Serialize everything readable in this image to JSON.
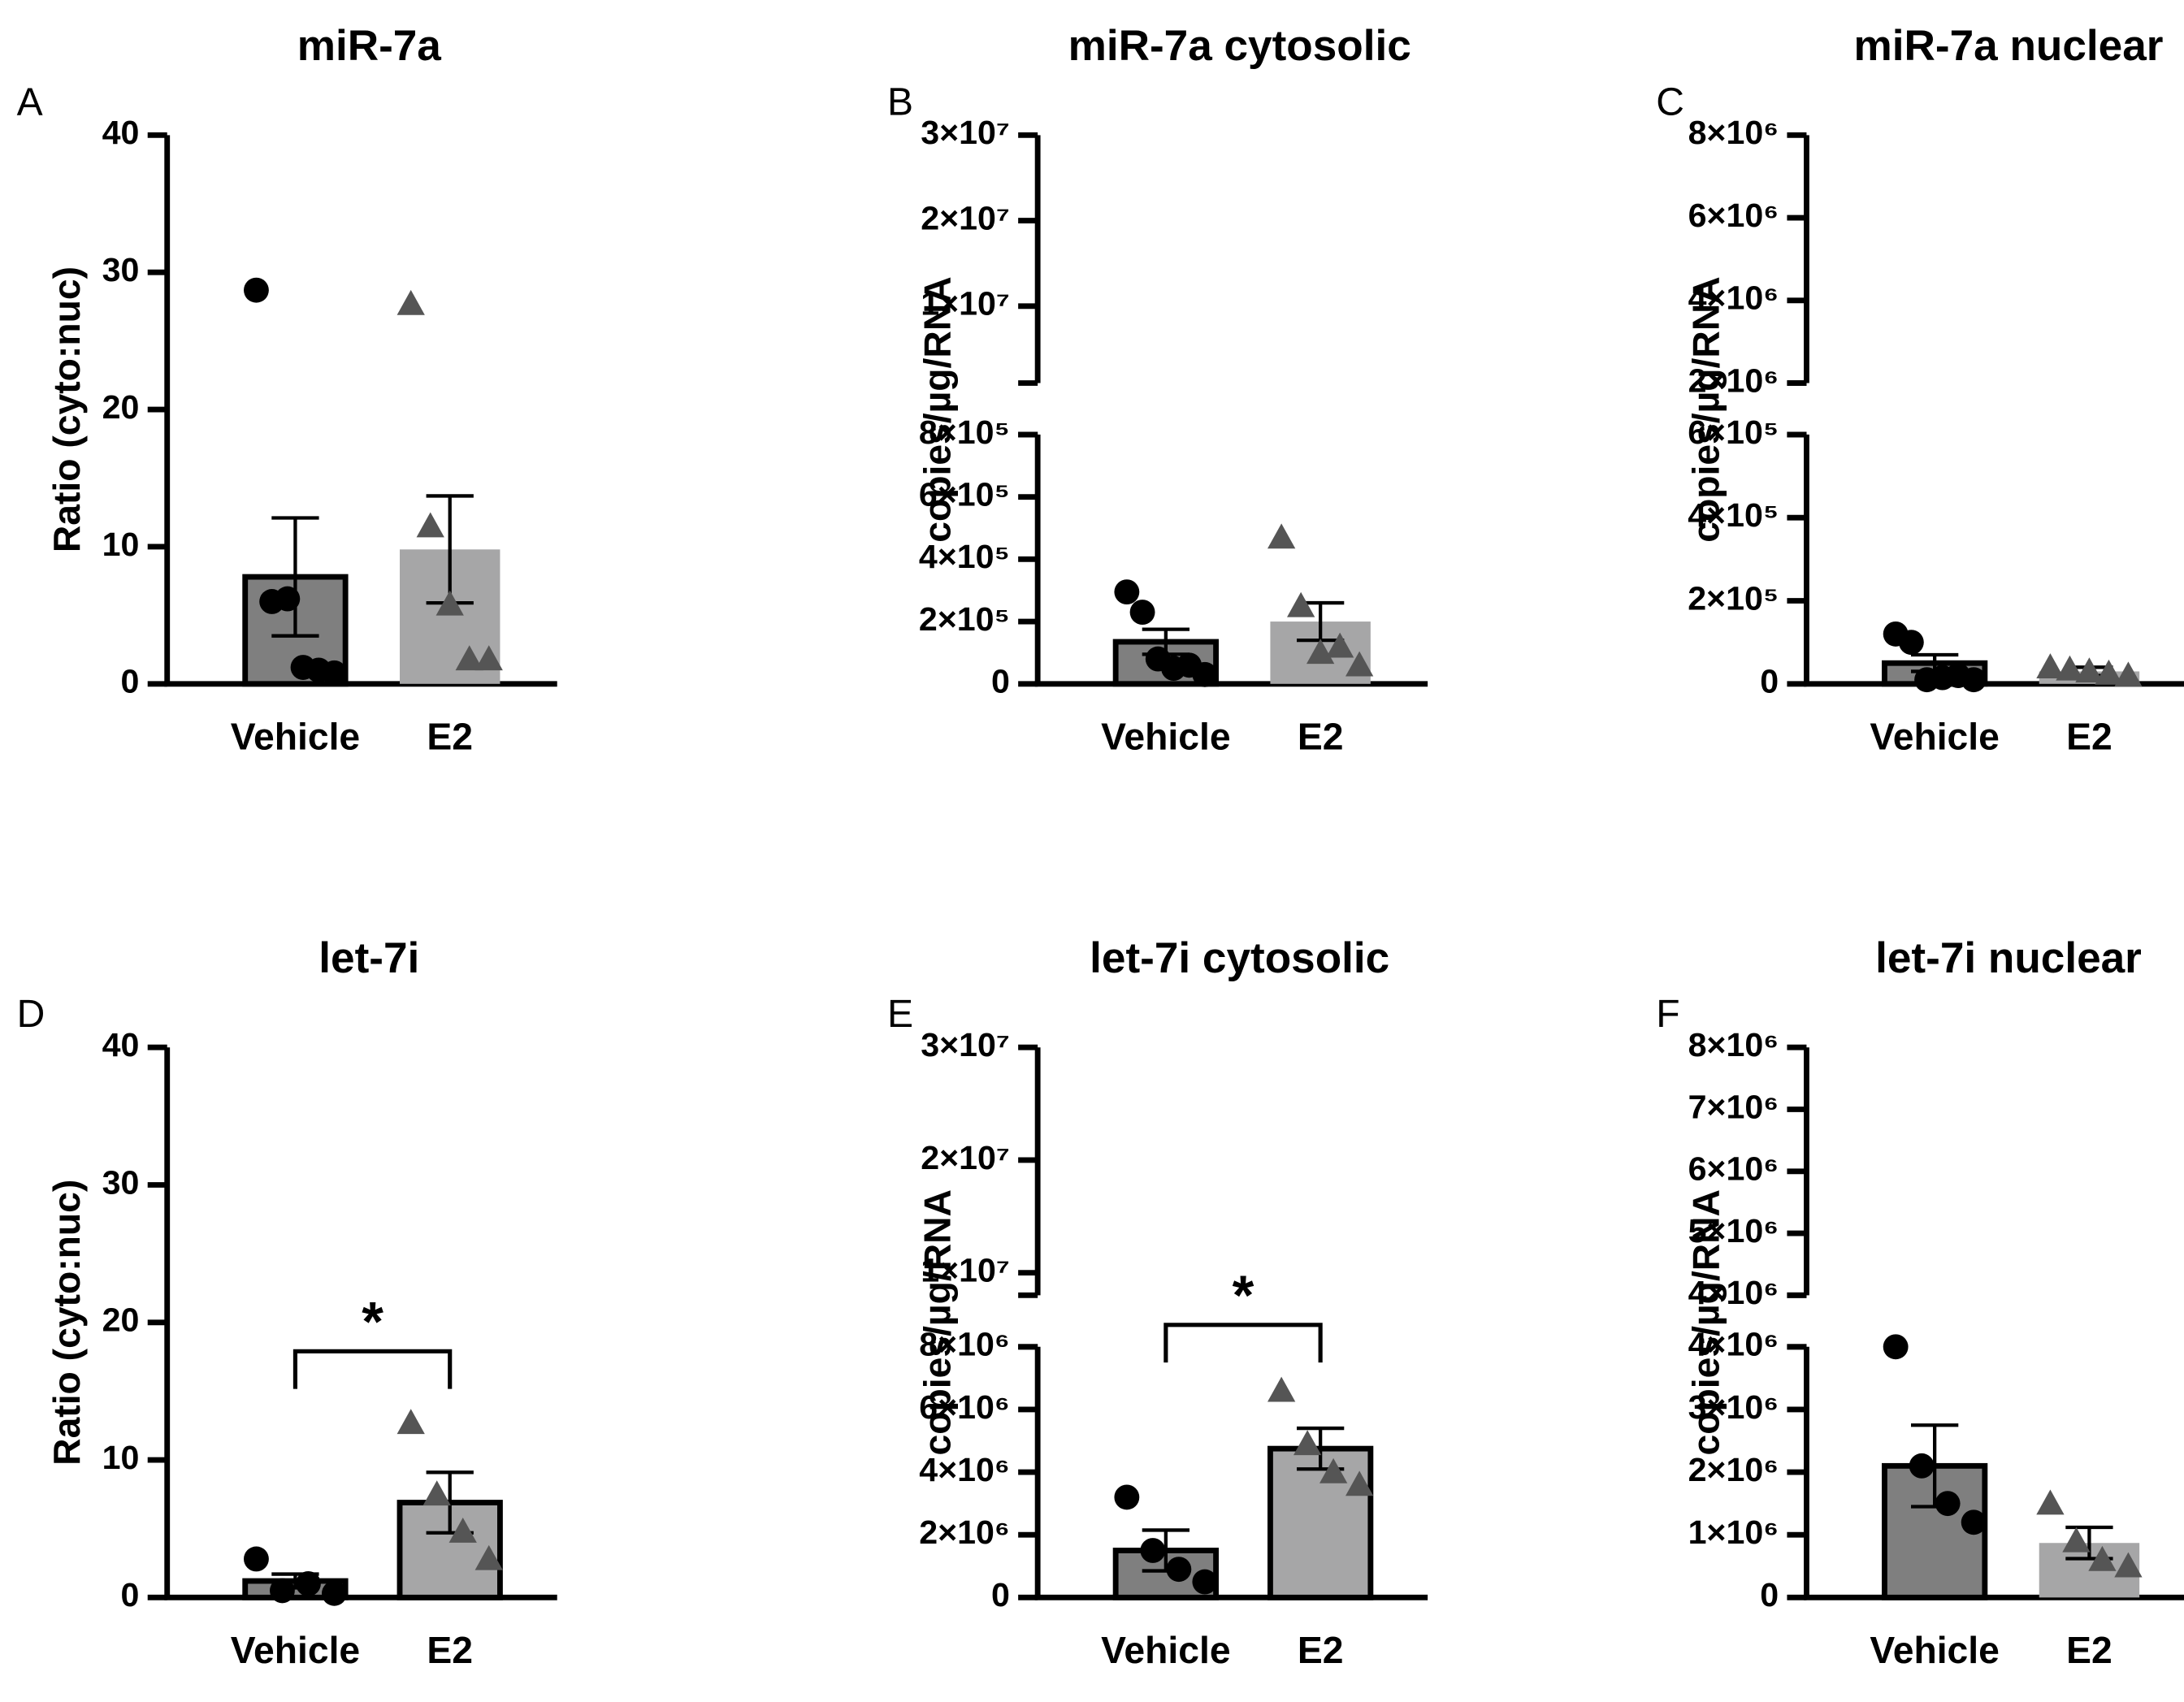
{
  "chart_data": [
    {
      "type": "bar",
      "panel": "A",
      "title": "miR-7a",
      "ylabel": "Ratio (cyto:nuc)",
      "categories": [
        "Vehicle",
        "E2"
      ],
      "values": [
        7.8,
        9.8
      ],
      "errors": [
        4.3,
        3.9
      ],
      "points": [
        [
          28.7,
          6.0,
          6.2,
          1.2,
          1.0,
          0.8
        ],
        [
          27.7,
          11.5,
          5.8,
          1.8,
          1.8
        ]
      ],
      "ylim": [
        0,
        40
      ],
      "yticks": [
        0,
        10,
        20,
        30,
        40
      ],
      "colors": [
        "#7f7f7f",
        "#a6a6a7"
      ],
      "point_colors": [
        "#000000",
        "#555555"
      ],
      "markers": [
        "circle",
        "triangle"
      ]
    },
    {
      "type": "bar",
      "panel": "B",
      "title": "miR-7a cytosolic",
      "ylabel": "copies/µg/RNA",
      "categories": [
        "Vehicle",
        "E2"
      ],
      "values": [
        135000,
        200000
      ],
      "errors": [
        40000,
        60000
      ],
      "points": [
        [
          295000,
          230000,
          80000,
          50000,
          60000,
          30000
        ],
        [
          470000,
          250000,
          100000,
          120000,
          60000
        ]
      ],
      "ylim": [
        0,
        800000
      ],
      "yticks": [
        0,
        {
          "value": 200000,
          "label": "2×10⁵"
        },
        {
          "value": 400000,
          "label": "4×10⁵"
        },
        {
          "value": 600000,
          "label": "6×10⁵"
        },
        {
          "value": 800000,
          "label": "8×10⁵"
        }
      ],
      "ylim_upper": [
        1000000,
        30000000
      ],
      "yticks_upper": [
        {
          "value": 10000000,
          "label": "1×10⁷"
        },
        {
          "value": 20000000,
          "label": "2×10⁷"
        },
        {
          "value": 30000000,
          "label": "3×10⁷"
        }
      ],
      "colors": [
        "#7f7f7f",
        "#a6a6a7"
      ],
      "point_colors": [
        "#000000",
        "#555555"
      ],
      "markers": [
        "circle",
        "triangle"
      ]
    },
    {
      "type": "bar",
      "panel": "C",
      "title": "miR-7a nuclear",
      "ylabel": "copies/µg/RNA",
      "categories": [
        "Vehicle",
        "E2"
      ],
      "values": [
        50000,
        30000
      ],
      "errors": [
        20000,
        10000
      ],
      "points": [
        [
          120000,
          100000,
          10000,
          15000,
          20000,
          10000
        ],
        [
          40000,
          35000,
          30000,
          25000,
          20000
        ]
      ],
      "ylim": [
        0,
        600000
      ],
      "yticks": [
        0,
        {
          "value": 200000,
          "label": "2×10⁵"
        },
        {
          "value": 400000,
          "label": "4×10⁵"
        },
        {
          "value": 600000,
          "label": "6×10⁵"
        }
      ],
      "ylim_upper": [
        2000000,
        8000000
      ],
      "yticks_upper": [
        {
          "value": 2000000,
          "label": "2×10⁶"
        },
        {
          "value": 4000000,
          "label": "4×10⁶"
        },
        {
          "value": 6000000,
          "label": "6×10⁶"
        },
        {
          "value": 8000000,
          "label": "8×10⁶"
        }
      ],
      "colors": [
        "#7f7f7f",
        "#a6a6a7"
      ],
      "point_colors": [
        "#000000",
        "#555555"
      ],
      "markers": [
        "circle",
        "triangle"
      ]
    },
    {
      "type": "bar",
      "panel": "D",
      "title": "let-7i",
      "ylabel": "Ratio (cyto:nuc)",
      "categories": [
        "Vehicle",
        "E2"
      ],
      "values": [
        1.2,
        6.9
      ],
      "errors": [
        0.5,
        2.2
      ],
      "points": [
        [
          2.8,
          0.5,
          1.0,
          0.3
        ],
        [
          12.7,
          7.5,
          4.8,
          2.8
        ]
      ],
      "ylim": [
        0,
        40
      ],
      "yticks": [
        0,
        10,
        20,
        30,
        40
      ],
      "colors": [
        "#7f7f7f",
        "#a6a6a7"
      ],
      "point_colors": [
        "#000000",
        "#555555"
      ],
      "markers": [
        "circle",
        "triangle"
      ],
      "significance": {
        "label": "*",
        "y": 17.9
      }
    },
    {
      "type": "bar",
      "panel": "E",
      "title": "let-7i cytosolic",
      "ylabel": "copies/µg/RNA",
      "categories": [
        "Vehicle",
        "E2"
      ],
      "values": [
        1500000,
        4750000
      ],
      "errors": [
        650000,
        650000
      ],
      "points": [
        [
          3200000,
          1500000,
          900000,
          500000
        ],
        [
          6600000,
          4900000,
          4000000,
          3600000
        ]
      ],
      "ylim": [
        0,
        8000000
      ],
      "yticks": [
        0,
        {
          "value": 2000000,
          "label": "2×10⁶"
        },
        {
          "value": 4000000,
          "label": "4×10⁶"
        },
        {
          "value": 6000000,
          "label": "6×10⁶"
        },
        {
          "value": 8000000,
          "label": "8×10⁶"
        }
      ],
      "ylim_upper": [
        8000000,
        30000000
      ],
      "yticks_upper": [
        {
          "value": 10000000,
          "label": "1×10⁷"
        },
        {
          "value": 20000000,
          "label": "2×10⁷"
        },
        {
          "value": 30000000,
          "label": "3×10⁷"
        }
      ],
      "colors": [
        "#7f7f7f",
        "#a6a6a7"
      ],
      "point_colors": [
        "#000000",
        "#555555"
      ],
      "markers": [
        "circle",
        "triangle"
      ],
      "significance": {
        "label": "*",
        "y": 8700000
      }
    },
    {
      "type": "bar",
      "panel": "F",
      "title": "let-7i nuclear",
      "ylabel": "copies/µg/RNA",
      "categories": [
        "Vehicle",
        "E2"
      ],
      "values": [
        2100000,
        870000
      ],
      "errors": [
        650000,
        250000
      ],
      "points": [
        [
          4000000,
          2100000,
          1500000,
          1200000
        ],
        [
          1500000,
          900000,
          600000,
          500000
        ]
      ],
      "ylim": [
        0,
        4000000
      ],
      "yticks": [
        0,
        {
          "value": 1000000,
          "label": "1×10⁶"
        },
        {
          "value": 2000000,
          "label": "2×10⁶"
        },
        {
          "value": 3000000,
          "label": "3×10⁶"
        },
        {
          "value": 4000000,
          "label": "4×10⁶"
        }
      ],
      "ylim_upper": [
        4000000,
        8000000
      ],
      "yticks_upper": [
        {
          "value": 4000000,
          "label": "4×10⁶"
        },
        {
          "value": 5000000,
          "label": "5×10⁶"
        },
        {
          "value": 6000000,
          "label": "6×10⁶"
        },
        {
          "value": 7000000,
          "label": "7×10⁶"
        },
        {
          "value": 8000000,
          "label": "8×10⁶"
        }
      ],
      "colors": [
        "#7f7f7f",
        "#a6a6a7"
      ],
      "point_colors": [
        "#000000",
        "#555555"
      ],
      "markers": [
        "circle",
        "triangle"
      ]
    }
  ]
}
